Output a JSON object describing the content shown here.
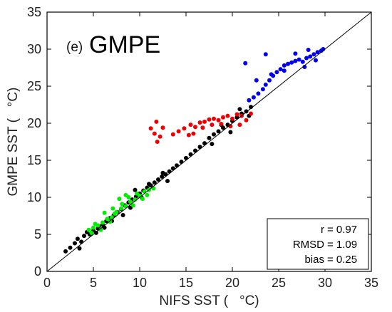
{
  "chart_data": {
    "type": "scatter",
    "panel_label": "(e)",
    "title": "GMPE",
    "xlabel": "NIFS SST (   °C)",
    "ylabel": "GMPE SST (   °C)",
    "xlim": [
      0,
      35
    ],
    "ylim": [
      0,
      35
    ],
    "xticks": [
      "0",
      "5",
      "10",
      "15",
      "20",
      "25",
      "30",
      "35"
    ],
    "yticks": [
      "0",
      "5",
      "10",
      "15",
      "20",
      "25",
      "30",
      "35"
    ],
    "one_to_one_line": true,
    "grid": false,
    "series": [
      {
        "color": "#000000",
        "points": [
          [
            2.0,
            2.7
          ],
          [
            2.5,
            3.2
          ],
          [
            3.0,
            3.8
          ],
          [
            3.3,
            4.4
          ],
          [
            3.7,
            4.0
          ],
          [
            4.0,
            4.8
          ],
          [
            4.3,
            5.3
          ],
          [
            4.6,
            5.0
          ],
          [
            5.0,
            5.5
          ],
          [
            5.3,
            5.2
          ],
          [
            5.6,
            6.1
          ],
          [
            6.0,
            6.3
          ],
          [
            6.4,
            6.8
          ],
          [
            6.8,
            7.2
          ],
          [
            7.2,
            7.6
          ],
          [
            7.6,
            8.0
          ],
          [
            8.0,
            8.4
          ],
          [
            8.4,
            8.9
          ],
          [
            8.8,
            9.3
          ],
          [
            9.2,
            9.7
          ],
          [
            9.6,
            10.1
          ],
          [
            10.0,
            10.5
          ],
          [
            10.4,
            10.9
          ],
          [
            10.8,
            11.3
          ],
          [
            11.2,
            11.6
          ],
          [
            11.6,
            12.0
          ],
          [
            12.0,
            12.4
          ],
          [
            12.4,
            12.8
          ],
          [
            12.8,
            13.1
          ],
          [
            13.2,
            13.5
          ],
          [
            13.6,
            13.9
          ],
          [
            14.0,
            14.3
          ],
          [
            14.5,
            14.8
          ],
          [
            15.0,
            15.3
          ],
          [
            15.5,
            15.8
          ],
          [
            16.0,
            16.3
          ],
          [
            16.5,
            16.8
          ],
          [
            17.0,
            17.3
          ],
          [
            17.5,
            18.0
          ],
          [
            18.0,
            18.5
          ],
          [
            18.5,
            18.9
          ],
          [
            19.0,
            19.4
          ],
          [
            19.5,
            19.8
          ],
          [
            20.0,
            20.3
          ],
          [
            20.5,
            20.8
          ],
          [
            21.0,
            21.3
          ],
          [
            21.5,
            21.6
          ],
          [
            22.0,
            22.2
          ],
          [
            5.5,
            5.8
          ],
          [
            6.2,
            5.9
          ],
          [
            7.0,
            6.8
          ],
          [
            9.0,
            8.6
          ],
          [
            10.2,
            10.0
          ],
          [
            11.0,
            11.8
          ],
          [
            12.5,
            13.3
          ],
          [
            9.5,
            11.0
          ],
          [
            13.0,
            12.2
          ],
          [
            8.2,
            7.6
          ],
          [
            17.8,
            17.2
          ],
          [
            18.8,
            19.8
          ],
          [
            19.8,
            18.8
          ],
          [
            20.8,
            21.9
          ],
          [
            21.8,
            21.0
          ],
          [
            3.5,
            3.1
          ]
        ]
      },
      {
        "color": "#00ee00",
        "points": [
          [
            4.5,
            5.6
          ],
          [
            5.0,
            5.9
          ],
          [
            5.5,
            6.2
          ],
          [
            6.0,
            6.6
          ],
          [
            6.5,
            7.1
          ],
          [
            7.0,
            7.3
          ],
          [
            7.5,
            8.0
          ],
          [
            8.0,
            8.5
          ],
          [
            8.5,
            8.8
          ],
          [
            9.0,
            9.4
          ],
          [
            9.5,
            9.7
          ],
          [
            10.0,
            10.2
          ],
          [
            10.5,
            10.8
          ],
          [
            11.0,
            11.0
          ],
          [
            11.5,
            11.2
          ],
          [
            7.8,
            9.8
          ],
          [
            8.5,
            10.3
          ],
          [
            8.8,
            10.0
          ],
          [
            6.2,
            7.9
          ],
          [
            5.2,
            6.4
          ],
          [
            6.8,
            6.7
          ],
          [
            7.3,
            7.8
          ],
          [
            9.3,
            8.9
          ],
          [
            10.3,
            9.8
          ],
          [
            4.8,
            5.2
          ],
          [
            5.8,
            5.6
          ],
          [
            7.1,
            8.5
          ],
          [
            8.1,
            9.1
          ],
          [
            9.7,
            10.5
          ],
          [
            10.8,
            10.3
          ]
        ]
      },
      {
        "color": "#ee0000",
        "points": [
          [
            11.2,
            19.3
          ],
          [
            11.6,
            18.6
          ],
          [
            11.9,
            17.5
          ],
          [
            12.2,
            18.2
          ],
          [
            11.8,
            20.2
          ],
          [
            12.5,
            19.4
          ],
          [
            14.8,
            19.3
          ],
          [
            15.5,
            19.8
          ],
          [
            16.0,
            19.5
          ],
          [
            16.5,
            20.1
          ],
          [
            17.0,
            20.2
          ],
          [
            17.5,
            20.5
          ],
          [
            18.0,
            20.6
          ],
          [
            18.5,
            20.4
          ],
          [
            19.0,
            20.8
          ],
          [
            19.5,
            21.0
          ],
          [
            20.0,
            20.6
          ],
          [
            20.5,
            21.2
          ],
          [
            21.0,
            21.0
          ],
          [
            21.5,
            20.4
          ],
          [
            22.0,
            21.3
          ],
          [
            20.8,
            19.8
          ],
          [
            19.8,
            19.6
          ],
          [
            18.8,
            19.9
          ],
          [
            17.8,
            19.8
          ],
          [
            16.8,
            19.4
          ],
          [
            15.8,
            18.6
          ],
          [
            15.3,
            18.4
          ],
          [
            14.2,
            18.9
          ],
          [
            13.6,
            18.5
          ]
        ]
      },
      {
        "color": "#0000ee",
        "points": [
          [
            21.8,
            23.1
          ],
          [
            22.3,
            23.5
          ],
          [
            22.8,
            24.0
          ],
          [
            23.3,
            24.6
          ],
          [
            23.6,
            25.2
          ],
          [
            24.0,
            25.8
          ],
          [
            24.4,
            26.4
          ],
          [
            24.8,
            26.9
          ],
          [
            25.2,
            27.3
          ],
          [
            25.6,
            27.8
          ],
          [
            26.0,
            28.0
          ],
          [
            26.4,
            28.2
          ],
          [
            26.8,
            28.4
          ],
          [
            27.2,
            28.6
          ],
          [
            27.6,
            28.3
          ],
          [
            28.0,
            28.8
          ],
          [
            28.4,
            29.0
          ],
          [
            28.8,
            29.3
          ],
          [
            29.2,
            29.6
          ],
          [
            29.6,
            29.8
          ],
          [
            29.8,
            30.0
          ],
          [
            21.4,
            28.1
          ],
          [
            23.6,
            29.3
          ],
          [
            26.8,
            29.4
          ],
          [
            22.6,
            25.8
          ],
          [
            24.2,
            26.6
          ],
          [
            27.8,
            27.6
          ],
          [
            29.0,
            28.5
          ],
          [
            25.6,
            27.1
          ],
          [
            28.2,
            29.9
          ]
        ]
      }
    ],
    "stats": {
      "labels": [
        "r",
        "RMSD",
        "bias"
      ],
      "values": [
        "= 0.97",
        "= 1.09",
        "= 0.25"
      ]
    }
  }
}
